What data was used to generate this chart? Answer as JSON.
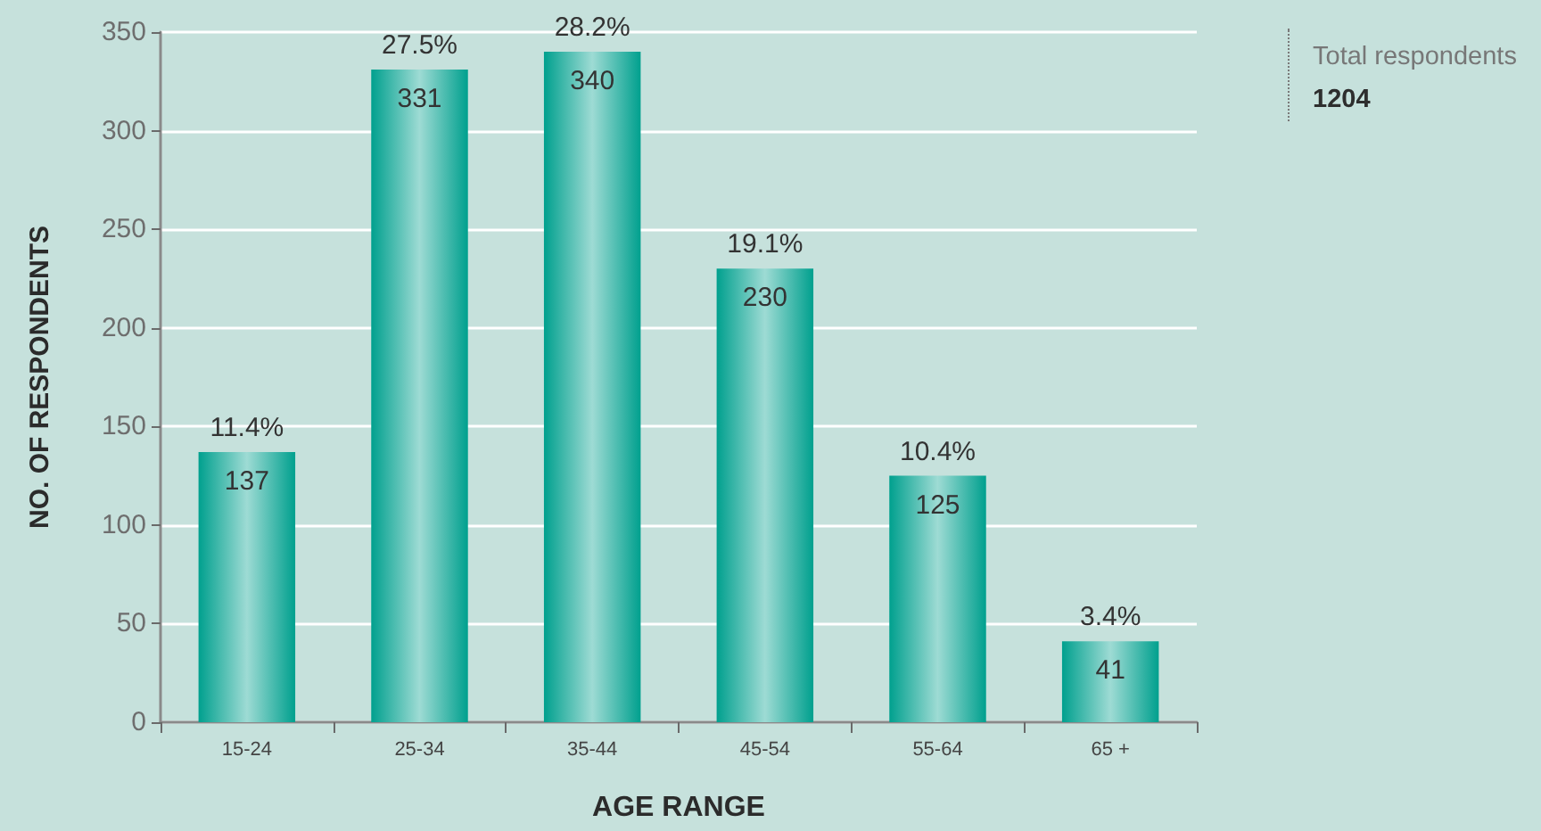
{
  "chart_data": {
    "type": "bar",
    "xlabel": "AGE RANGE",
    "ylabel": "NO. OF RESPONDENTS",
    "categories": [
      "15-24",
      "25-34",
      "35-44",
      "45-54",
      "55-64",
      "65 +"
    ],
    "values": [
      137,
      331,
      340,
      230,
      125,
      41
    ],
    "color": "#00a08e",
    "ylim": [
      0,
      350
    ],
    "yticks": [
      0,
      50,
      100,
      150,
      200,
      250,
      300,
      350
    ],
    "grid": "y",
    "data_labels": true,
    "annotations": [
      {
        "text": "11.4%",
        "x": "15-24",
        "y": 137
      },
      {
        "text": "27.5%",
        "x": "25-34",
        "y": 331
      },
      {
        "text": "28.2%",
        "x": "35-44",
        "y": 340
      },
      {
        "text": "19.1%",
        "x": "45-54",
        "y": 230
      },
      {
        "text": "10.4%",
        "x": "55-64",
        "y": 125
      },
      {
        "text": "3.4%",
        "x": "65 +",
        "y": 41
      },
      "Total respondents",
      "1204"
    ]
  }
}
